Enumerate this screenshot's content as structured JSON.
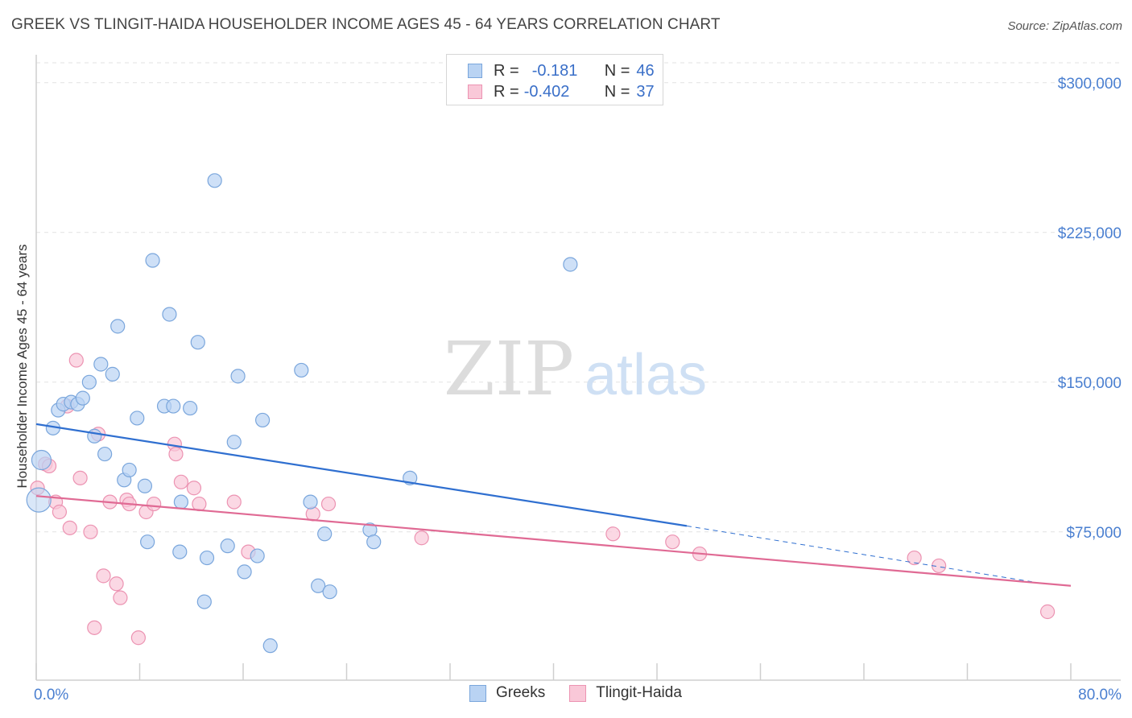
{
  "title": "GREEK VS TLINGIT-HAIDA HOUSEHOLDER INCOME AGES 45 - 64 YEARS CORRELATION CHART",
  "source": "Source: ZipAtlas.com",
  "watermark": {
    "zip": "ZIP",
    "atlas": "atlas"
  },
  "legend": {
    "r_label": "R =",
    "n_label": "N =",
    "rows": [
      {
        "r": "-0.181",
        "n": "46"
      },
      {
        "r": "-0.402",
        "n": "37"
      }
    ]
  },
  "colors": {
    "greek_fill": "#b9d3f3",
    "greek_stroke": "#7aa6dc",
    "greek_line": "#2f6fd0",
    "tlingit_fill": "#f9c8d8",
    "tlingit_stroke": "#ec93b2",
    "tlingit_line": "#e06a94",
    "tick_color": "#4a7fd0"
  },
  "chart_data": {
    "type": "scatter",
    "xlabel": "",
    "ylabel": "Householder Income Ages 45 - 64 years",
    "xlim": [
      0,
      80
    ],
    "ylim": [
      10000,
      310000
    ],
    "x_tick_labels": [
      "0.0%",
      "80.0%"
    ],
    "y_ticks": [
      75000,
      150000,
      225000,
      300000
    ],
    "y_tick_labels": [
      "$75,000",
      "$150,000",
      "$225,000",
      "$300,000"
    ],
    "grid": "dashed horizontal",
    "legend_position": "top-center and bottom",
    "series": [
      {
        "name": "Greeks",
        "points": [
          [
            0.4,
            111000
          ],
          [
            1.3,
            127000
          ],
          [
            1.7,
            136000
          ],
          [
            2.1,
            139000
          ],
          [
            2.7,
            140000
          ],
          [
            3.2,
            139000
          ],
          [
            3.6,
            142000
          ],
          [
            4.1,
            150000
          ],
          [
            4.5,
            123000
          ],
          [
            5.0,
            159000
          ],
          [
            5.3,
            114000
          ],
          [
            5.9,
            154000
          ],
          [
            6.3,
            178000
          ],
          [
            6.8,
            101000
          ],
          [
            7.2,
            106000
          ],
          [
            7.8,
            132000
          ],
          [
            8.4,
            98000
          ],
          [
            8.6,
            70000
          ],
          [
            9.0,
            211000
          ],
          [
            9.9,
            138000
          ],
          [
            10.3,
            184000
          ],
          [
            10.6,
            138000
          ],
          [
            11.2,
            90000
          ],
          [
            11.1,
            65000
          ],
          [
            11.9,
            137000
          ],
          [
            12.5,
            170000
          ],
          [
            13.2,
            62000
          ],
          [
            13.0,
            40000
          ],
          [
            13.8,
            251000
          ],
          [
            14.8,
            68000
          ],
          [
            15.3,
            120000
          ],
          [
            15.6,
            153000
          ],
          [
            16.1,
            55000
          ],
          [
            17.1,
            63000
          ],
          [
            17.5,
            131000
          ],
          [
            18.1,
            18000
          ],
          [
            20.5,
            156000
          ],
          [
            21.2,
            90000
          ],
          [
            21.8,
            48000
          ],
          [
            22.3,
            74000
          ],
          [
            22.7,
            45000
          ],
          [
            25.8,
            76000
          ],
          [
            26.1,
            70000
          ],
          [
            28.9,
            102000
          ],
          [
            41.3,
            209000
          ],
          [
            0.2,
            91000
          ]
        ],
        "trend": {
          "x": [
            0,
            50.3
          ],
          "y": [
            129000,
            78000
          ],
          "dashed_to": [
            77,
            50000
          ]
        }
      },
      {
        "name": "Tlingit-Haida",
        "points": [
          [
            0.1,
            97000
          ],
          [
            0.7,
            109000
          ],
          [
            1.0,
            108000
          ],
          [
            1.5,
            90000
          ],
          [
            1.8,
            85000
          ],
          [
            2.4,
            138000
          ],
          [
            2.6,
            77000
          ],
          [
            3.1,
            161000
          ],
          [
            3.4,
            102000
          ],
          [
            4.2,
            75000
          ],
          [
            4.5,
            27000
          ],
          [
            4.8,
            124000
          ],
          [
            5.2,
            53000
          ],
          [
            5.7,
            90000
          ],
          [
            6.2,
            49000
          ],
          [
            6.5,
            42000
          ],
          [
            7.0,
            91000
          ],
          [
            7.2,
            89000
          ],
          [
            7.9,
            22000
          ],
          [
            8.5,
            85000
          ],
          [
            9.1,
            89000
          ],
          [
            10.7,
            119000
          ],
          [
            10.8,
            114000
          ],
          [
            11.2,
            100000
          ],
          [
            12.2,
            97000
          ],
          [
            12.6,
            89000
          ],
          [
            15.3,
            90000
          ],
          [
            16.4,
            65000
          ],
          [
            21.4,
            84000
          ],
          [
            22.6,
            89000
          ],
          [
            29.8,
            72000
          ],
          [
            44.6,
            74000
          ],
          [
            49.2,
            70000
          ],
          [
            51.3,
            64000
          ],
          [
            67.9,
            62000
          ],
          [
            69.8,
            58000
          ],
          [
            78.2,
            35000
          ]
        ],
        "trend": {
          "x": [
            0,
            80
          ],
          "y": [
            93000,
            48000
          ]
        }
      }
    ]
  },
  "bottom_legend": [
    "Greeks",
    "Tlingit-Haida"
  ]
}
